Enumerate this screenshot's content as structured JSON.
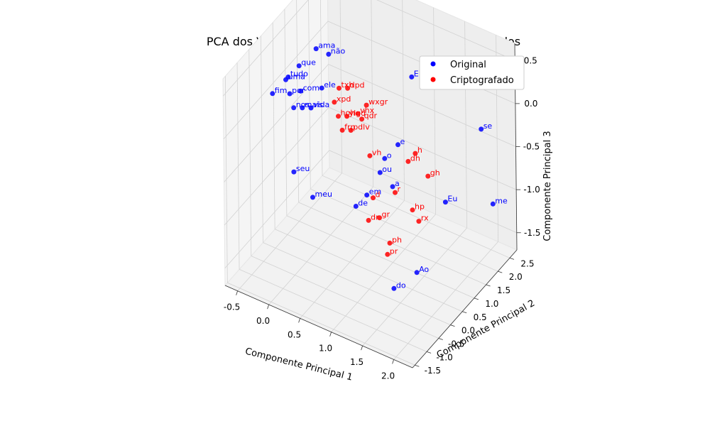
{
  "chart_data": {
    "type": "scatter",
    "title": "PCA dos Vetores de Palavras Originais e Criptografados",
    "xlabel": "Componente Principal 1",
    "ylabel": "Componente Principal 2",
    "zlabel": "Componente Principal 3",
    "xlim": [
      -0.7,
      2.3
    ],
    "ylim": [
      -1.6,
      2.8
    ],
    "zlim": [
      -1.7,
      0.7
    ],
    "xticks": [
      "-0.5",
      "0.0",
      "0.5",
      "1.0",
      "1.5",
      "2.0"
    ],
    "yticks": [
      "-1.5",
      "-1.0",
      "-0.5",
      "0.0",
      "0.5",
      "1.0",
      "1.5",
      "2.0",
      "2.5"
    ],
    "zticks": [
      "-1.5",
      "-1.0",
      "-0.5",
      "0.0",
      "0.5"
    ],
    "grid": true,
    "legend": {
      "position": "top-right",
      "entries": [
        {
          "label": "Original",
          "color": "#0000ff"
        },
        {
          "label": "Criptografado",
          "color": "#ff0000"
        }
      ]
    },
    "series": [
      {
        "name": "Original",
        "color": "#0000ff",
        "points": [
          {
            "label": "E",
            "x": 1.1,
            "y": 1.6,
            "z": 0.3
          },
          {
            "label": "se",
            "x": 1.9,
            "y": 2.4,
            "z": -0.3
          },
          {
            "label": "me",
            "x": 2.0,
            "y": 2.6,
            "z": -1.2
          },
          {
            "label": "Eu",
            "x": 1.7,
            "y": 1.4,
            "z": -0.9
          },
          {
            "label": "Ao",
            "x": 2.0,
            "y": -0.6,
            "z": -1.0
          },
          {
            "label": "do",
            "x": 1.9,
            "y": -1.3,
            "z": -1.0
          },
          {
            "label": "seu",
            "x": 0.0,
            "y": -0.5,
            "z": -0.5
          },
          {
            "label": "meu",
            "x": 0.3,
            "y": -0.5,
            "z": -0.7
          },
          {
            "label": "de",
            "x": 0.8,
            "y": 0.0,
            "z": -0.8
          },
          {
            "label": "em",
            "x": 0.9,
            "y": 0.2,
            "z": -0.7
          },
          {
            "label": "a",
            "x": 1.2,
            "y": 0.5,
            "z": -0.6
          },
          {
            "label": "o",
            "x": 1.0,
            "y": 0.7,
            "z": -0.4
          },
          {
            "label": "ou",
            "x": 1.0,
            "y": 0.5,
            "z": -0.5
          },
          {
            "label": "e",
            "x": 1.1,
            "y": 1.0,
            "z": -0.3
          },
          {
            "label": "fim",
            "x": -0.6,
            "y": 0.2,
            "z": 0.0
          },
          {
            "label": "ama",
            "x": -0.2,
            "y": 1.0,
            "z": 0.4
          },
          {
            "label": "não",
            "x": 0.0,
            "y": 1.0,
            "z": 0.4
          },
          {
            "label": "que",
            "x": -0.4,
            "y": 0.8,
            "z": 0.2
          },
          {
            "label": "tudo",
            "x": -0.5,
            "y": 0.6,
            "z": 0.1
          },
          {
            "label": "com",
            "x": -0.3,
            "y": 0.6,
            "z": 0.0
          },
          {
            "label": "vida",
            "x": -0.1,
            "y": 0.5,
            "z": -0.1
          },
          {
            "label": "ele",
            "x": 0.0,
            "y": 0.7,
            "z": 0.1
          },
          {
            "label": "mais",
            "x": -0.2,
            "y": 0.4,
            "z": -0.1
          },
          {
            "label": "por",
            "x": -0.4,
            "y": 0.4,
            "z": 0.0
          },
          {
            "label": "uma",
            "x": -0.5,
            "y": 0.5,
            "z": 0.1
          },
          {
            "label": "nos",
            "x": -0.3,
            "y": 0.3,
            "z": -0.1
          }
        ]
      },
      {
        "name": "Criptografado",
        "color": "#ff0000",
        "points": [
          {
            "label": "h",
            "x": 1.3,
            "y": 1.2,
            "z": -0.4
          },
          {
            "label": "dh",
            "x": 1.3,
            "y": 0.9,
            "z": -0.4
          },
          {
            "label": "gh",
            "x": 1.5,
            "y": 1.2,
            "z": -0.6
          },
          {
            "label": "r",
            "x": 1.2,
            "y": 0.6,
            "z": -0.7
          },
          {
            "label": "hp",
            "x": 1.4,
            "y": 0.8,
            "z": -0.9
          },
          {
            "label": "rx",
            "x": 1.5,
            "y": 0.8,
            "z": -1.0
          },
          {
            "label": "d",
            "x": 1.0,
            "y": 0.2,
            "z": -0.7
          },
          {
            "label": "gr",
            "x": 1.1,
            "y": 0.2,
            "z": -0.9
          },
          {
            "label": "dr",
            "x": 1.0,
            "y": 0.0,
            "z": -0.9
          },
          {
            "label": "vh",
            "x": 0.8,
            "y": 0.6,
            "z": -0.4
          },
          {
            "label": "ph",
            "x": 1.3,
            "y": 0.1,
            "z": -1.1
          },
          {
            "label": "pr",
            "x": 1.3,
            "y": 0.0,
            "z": -1.2
          },
          {
            "label": "vhx",
            "x": 0.5,
            "y": 0.9,
            "z": -0.1
          },
          {
            "label": "wxgr",
            "x": 0.6,
            "y": 1.0,
            "z": 0.0
          },
          {
            "label": "ylgd",
            "x": 0.4,
            "y": 0.7,
            "z": -0.1
          },
          {
            "label": "hoh",
            "x": 0.3,
            "y": 0.6,
            "z": -0.1
          },
          {
            "label": "pdlv",
            "x": 0.5,
            "y": 0.6,
            "z": -0.2
          },
          {
            "label": "txh",
            "x": 0.2,
            "y": 0.9,
            "z": 0.1
          },
          {
            "label": "frp",
            "x": 0.4,
            "y": 0.5,
            "z": -0.2
          },
          {
            "label": "qdr",
            "x": 0.6,
            "y": 0.8,
            "z": -0.1
          },
          {
            "label": "dpd",
            "x": 0.3,
            "y": 1.0,
            "z": 0.1
          },
          {
            "label": "xpd",
            "x": 0.2,
            "y": 0.7,
            "z": 0.0
          }
        ]
      }
    ]
  }
}
